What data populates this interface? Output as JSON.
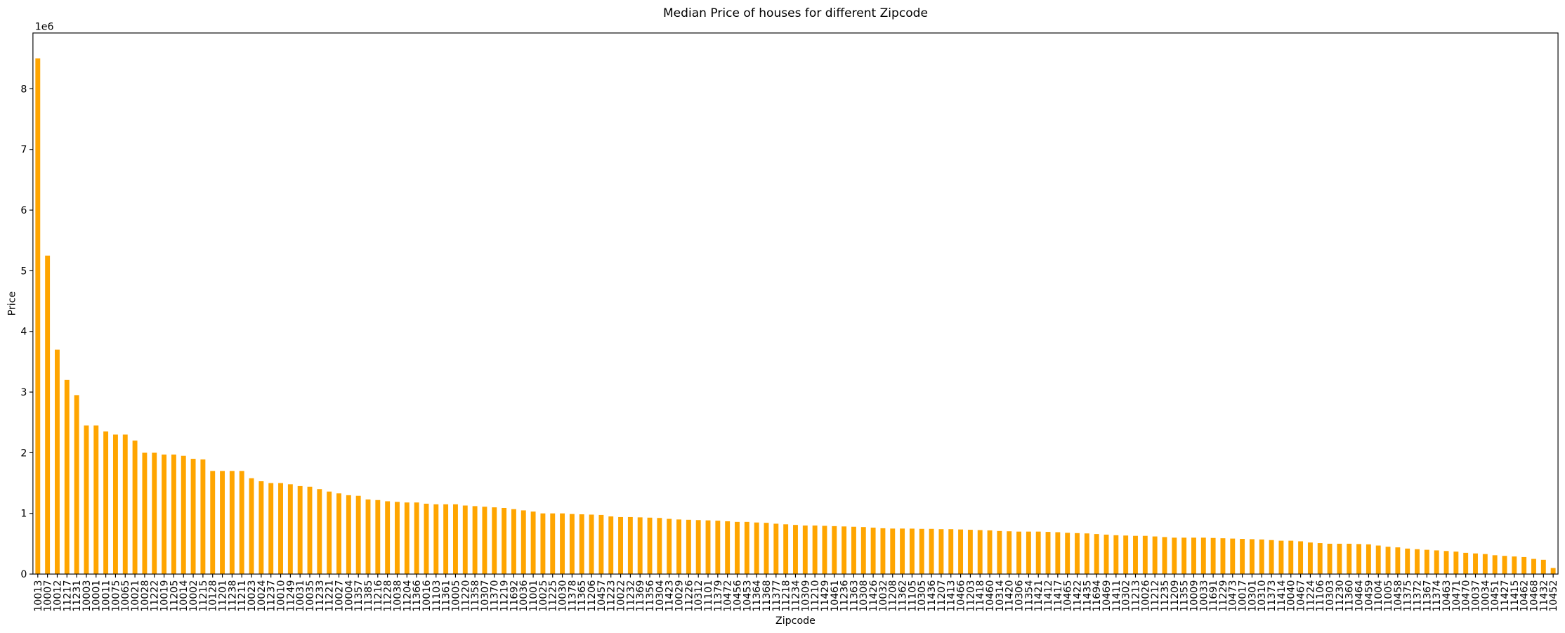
{
  "chart_data": {
    "type": "bar",
    "title": "Median Price of houses for different Zipcode",
    "x_label": "Zipcode",
    "y_label": "Price",
    "y_offset_label": "1e6",
    "color": "#ffa500",
    "categories": [
      "10013",
      "10007",
      "10012",
      "11217",
      "11231",
      "10003",
      "10001",
      "10011",
      "10075",
      "10065",
      "10021",
      "10028",
      "11222",
      "10019",
      "11205",
      "10014",
      "10002",
      "11215",
      "10128",
      "11201",
      "11238",
      "11211",
      "10023",
      "10024",
      "11237",
      "10010",
      "11249",
      "10031",
      "10035",
      "11233",
      "11221",
      "10027",
      "10004",
      "11357",
      "11385",
      "11216",
      "11228",
      "10038",
      "11204",
      "11366",
      "10016",
      "11103",
      "11361",
      "10005",
      "11220",
      "11358",
      "10307",
      "11370",
      "11219",
      "11692",
      "10036",
      "11001",
      "10025",
      "11225",
      "10030",
      "11378",
      "11365",
      "11206",
      "10457",
      "11223",
      "10022",
      "11232",
      "11369",
      "11356",
      "10304",
      "11423",
      "10029",
      "11226",
      "10312",
      "11101",
      "11379",
      "10472",
      "10456",
      "10453",
      "11364",
      "11368",
      "11377",
      "11218",
      "11234",
      "10309",
      "11210",
      "11429",
      "10461",
      "11236",
      "11363",
      "10308",
      "11426",
      "10032",
      "11208",
      "11362",
      "11105",
      "10305",
      "11436",
      "11207",
      "11413",
      "10466",
      "11203",
      "11418",
      "10460",
      "10314",
      "11420",
      "10306",
      "11354",
      "11421",
      "11412",
      "11417",
      "10465",
      "11422",
      "11435",
      "11694",
      "10469",
      "11411",
      "10302",
      "11213",
      "10026",
      "11212",
      "11235",
      "11209",
      "11355",
      "10009",
      "10033",
      "11691",
      "11229",
      "10473",
      "10017",
      "10301",
      "10310",
      "11373",
      "11414",
      "10040",
      "10467",
      "11224",
      "11106",
      "10303",
      "11230",
      "11360",
      "10464",
      "10459",
      "11004",
      "11005",
      "10458",
      "11375",
      "11372",
      "11367",
      "11374",
      "10463",
      "10471",
      "10470",
      "10037",
      "10034",
      "10451",
      "11427",
      "11415",
      "10462",
      "10468",
      "11432",
      "10452"
    ],
    "values": [
      8500000,
      5250000,
      3700000,
      3200000,
      2950000,
      2450000,
      2450000,
      2350000,
      2300000,
      2300000,
      2200000,
      2000000,
      2000000,
      1970000,
      1970000,
      1950000,
      1900000,
      1890000,
      1700000,
      1700000,
      1700000,
      1700000,
      1580000,
      1530000,
      1500000,
      1500000,
      1480000,
      1450000,
      1440000,
      1400000,
      1360000,
      1330000,
      1300000,
      1290000,
      1230000,
      1220000,
      1200000,
      1190000,
      1180000,
      1180000,
      1160000,
      1150000,
      1150000,
      1150000,
      1130000,
      1120000,
      1110000,
      1100000,
      1090000,
      1070000,
      1050000,
      1030000,
      1000000,
      1000000,
      1000000,
      990000,
      985000,
      980000,
      975000,
      950000,
      940000,
      940000,
      935000,
      930000,
      925000,
      910000,
      900000,
      895000,
      890000,
      885000,
      880000,
      870000,
      860000,
      860000,
      850000,
      845000,
      830000,
      820000,
      810000,
      800000,
      800000,
      795000,
      790000,
      785000,
      780000,
      775000,
      765000,
      755000,
      750000,
      750000,
      749000,
      745000,
      745000,
      740000,
      740000,
      735000,
      730000,
      725000,
      720000,
      710000,
      705000,
      700000,
      700000,
      700000,
      695000,
      690000,
      680000,
      675000,
      670000,
      660000,
      650000,
      640000,
      635000,
      630000,
      630000,
      620000,
      610000,
      600000,
      600000,
      600000,
      600000,
      595000,
      590000,
      585000,
      580000,
      575000,
      570000,
      560000,
      550000,
      550000,
      540000,
      520000,
      510000,
      500000,
      500000,
      500000,
      495000,
      490000,
      470000,
      450000,
      440000,
      420000,
      410000,
      400000,
      390000,
      380000,
      370000,
      350000,
      340000,
      330000,
      310000,
      300000,
      290000,
      280000,
      250000,
      235000,
      100000
    ],
    "ylim": [
      0,
      8920000
    ],
    "yticks": [
      0,
      {
        "value": 1000000,
        "label": "1"
      },
      {
        "value": 2000000,
        "label": "2"
      },
      {
        "value": 3000000,
        "label": "3"
      },
      {
        "value": 4000000,
        "label": "4"
      },
      {
        "value": 5000000,
        "label": "5"
      },
      {
        "value": 6000000,
        "label": "6"
      },
      {
        "value": 7000000,
        "label": "7"
      },
      {
        "value": 8000000,
        "label": "8"
      }
    ]
  }
}
